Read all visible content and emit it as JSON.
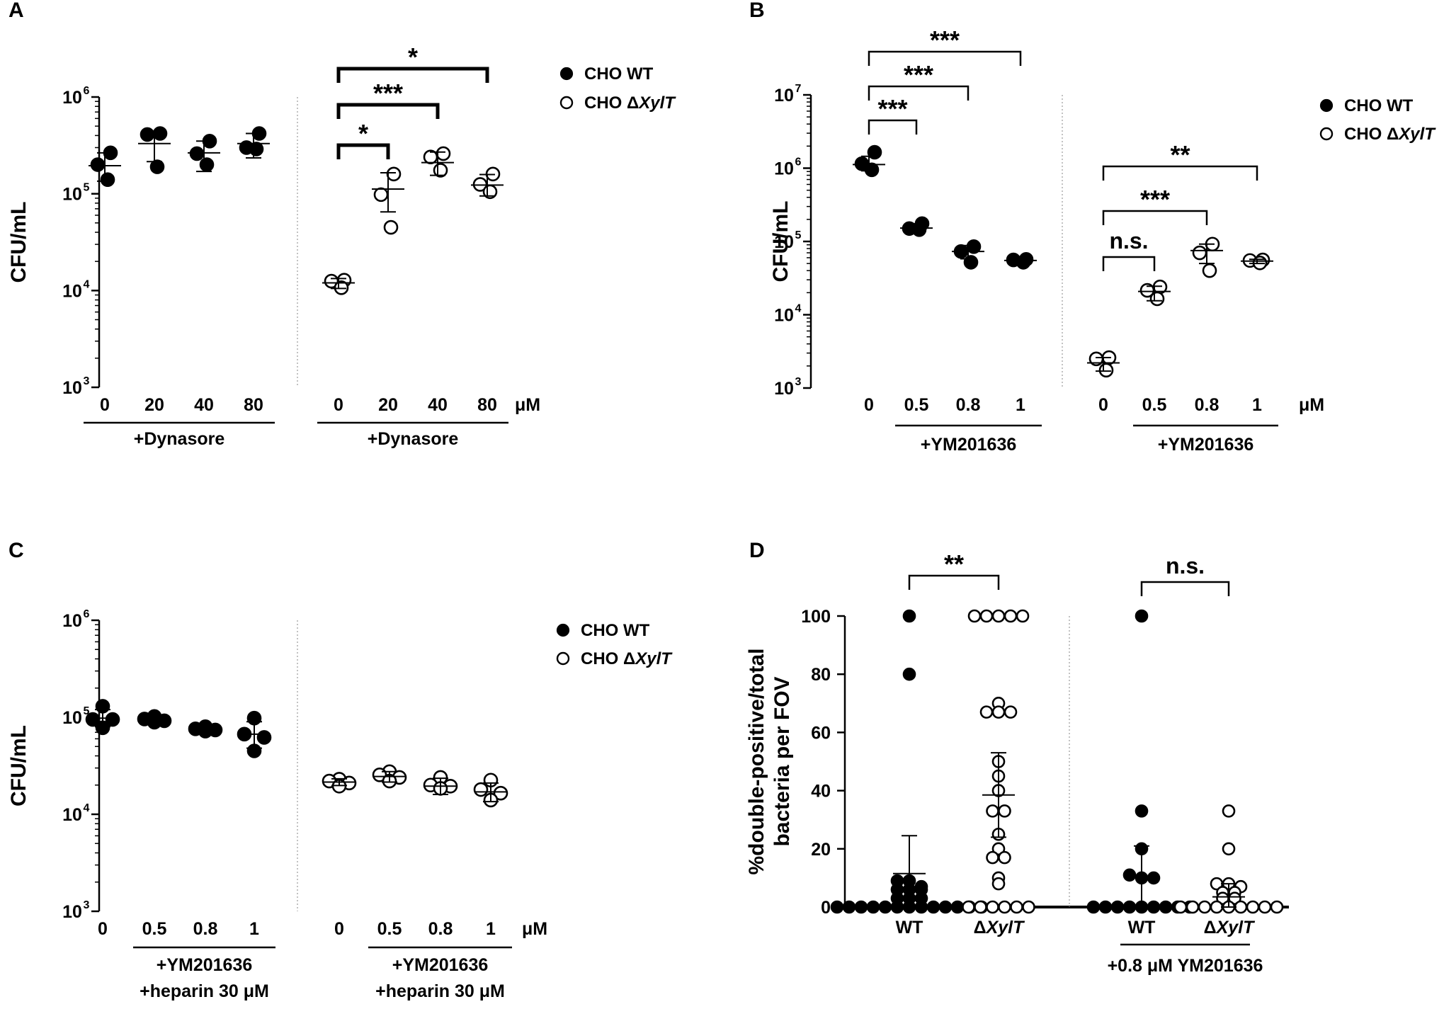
{
  "legend": {
    "wt": "CHO WT",
    "ko_prefix": "CHO Δ",
    "ko_italic": "XylT"
  },
  "unit": "μM",
  "chart_data": [
    {
      "panel": "A",
      "type": "scatter",
      "yscale": "log",
      "ylabel": "CFU/mL",
      "ylim": [
        1000,
        1000000
      ],
      "y_ticks": [
        {
          "base": "10",
          "exp": "3",
          "value": 1000
        },
        {
          "base": "10",
          "exp": "4",
          "value": 10000
        },
        {
          "base": "10",
          "exp": "5",
          "value": 100000
        },
        {
          "base": "10",
          "exp": "6",
          "value": 1000000
        }
      ],
      "legend_entries": [
        "CHO WT",
        "CHO ΔXylT"
      ],
      "treatment_label": "+Dynasore",
      "groups": [
        {
          "series": "CHO WT",
          "label": "0",
          "mean": 195000,
          "sd_low": 135000,
          "sd_high": 265000,
          "points": [
            265000,
            200000,
            140000
          ]
        },
        {
          "series": "CHO WT",
          "label": "20",
          "mean": 330000,
          "sd_low": 215000,
          "sd_high": 430000,
          "points": [
            420000,
            410000,
            190000
          ]
        },
        {
          "series": "CHO WT",
          "label": "40",
          "mean": 265000,
          "sd_low": 170000,
          "sd_high": 350000,
          "points": [
            350000,
            260000,
            200000
          ]
        },
        {
          "series": "CHO WT",
          "label": "80",
          "mean": 330000,
          "sd_low": 235000,
          "sd_high": 420000,
          "points": [
            420000,
            300000,
            290000
          ]
        },
        {
          "series": "CHO ΔXylT",
          "label": "0",
          "mean": 12000,
          "sd_low": 10500,
          "sd_high": 13300,
          "points": [
            12800,
            12500,
            10700
          ]
        },
        {
          "series": "CHO ΔXylT",
          "label": "20",
          "mean": 112000,
          "sd_low": 65000,
          "sd_high": 165000,
          "points": [
            160000,
            98000,
            45000
          ]
        },
        {
          "series": "CHO ΔXylT",
          "label": "40",
          "mean": 210000,
          "sd_low": 155000,
          "sd_high": 270000,
          "points": [
            260000,
            240000,
            175000
          ]
        },
        {
          "series": "CHO ΔXylT",
          "label": "80",
          "mean": 123000,
          "sd_low": 95000,
          "sd_high": 158000,
          "points": [
            160000,
            125000,
            105000
          ]
        }
      ],
      "comparisons": [
        {
          "from_group": 4,
          "to_group": 5,
          "label": "*"
        },
        {
          "from_group": 4,
          "to_group": 6,
          "label": "***"
        },
        {
          "from_group": 4,
          "to_group": 7,
          "label": "*"
        }
      ]
    },
    {
      "panel": "B",
      "type": "scatter",
      "yscale": "log",
      "ylabel": "CFU/mL",
      "ylim": [
        1000,
        10000000
      ],
      "y_ticks": [
        {
          "base": "10",
          "exp": "3",
          "value": 1000
        },
        {
          "base": "10",
          "exp": "4",
          "value": 10000
        },
        {
          "base": "10",
          "exp": "5",
          "value": 100000
        },
        {
          "base": "10",
          "exp": "6",
          "value": 1000000
        },
        {
          "base": "10",
          "exp": "7",
          "value": 10000000
        }
      ],
      "legend_entries": [
        "CHO WT",
        "CHO ΔXylT"
      ],
      "treatment_label": "+YM201636",
      "groups": [
        {
          "series": "CHO WT",
          "label": "0",
          "mean": 1120000,
          "sd_low": 920000,
          "sd_high": 1450000,
          "points": [
            1650000,
            1150000,
            950000
          ]
        },
        {
          "series": "CHO WT",
          "label": "0.5",
          "mean": 152000,
          "sd_low": 135000,
          "sd_high": 175000,
          "points": [
            175000,
            150000,
            145000
          ]
        },
        {
          "series": "CHO WT",
          "label": "0.8",
          "mean": 73000,
          "sd_low": 58000,
          "sd_high": 88000,
          "points": [
            85000,
            73000,
            52000
          ]
        },
        {
          "series": "CHO WT",
          "label": "1",
          "mean": 55000,
          "sd_low": 51000,
          "sd_high": 58000,
          "points": [
            57000,
            56000,
            52000
          ]
        },
        {
          "series": "CHO ΔXylT",
          "label": "0",
          "mean": 2200,
          "sd_low": 1700,
          "sd_high": 2600,
          "points": [
            2600,
            2500,
            1750
          ]
        },
        {
          "series": "CHO ΔXylT",
          "label": "0.5",
          "mean": 20800,
          "sd_low": 15500,
          "sd_high": 24500,
          "points": [
            24000,
            21500,
            16500
          ]
        },
        {
          "series": "CHO ΔXylT",
          "label": "0.8",
          "mean": 75000,
          "sd_low": 50000,
          "sd_high": 92000,
          "points": [
            92000,
            70000,
            40000
          ]
        },
        {
          "series": "CHO ΔXylT",
          "label": "1",
          "mean": 54000,
          "sd_low": 50000,
          "sd_high": 57000,
          "points": [
            56000,
            55000,
            51000
          ]
        }
      ],
      "comparisons": [
        {
          "from_group": 0,
          "to_group": 1,
          "label": "***"
        },
        {
          "from_group": 0,
          "to_group": 2,
          "label": "***"
        },
        {
          "from_group": 0,
          "to_group": 3,
          "label": "***"
        },
        {
          "from_group": 4,
          "to_group": 5,
          "label": "n.s."
        },
        {
          "from_group": 4,
          "to_group": 6,
          "label": "***"
        },
        {
          "from_group": 4,
          "to_group": 7,
          "label": "**"
        }
      ]
    },
    {
      "panel": "C",
      "type": "scatter",
      "yscale": "log",
      "ylabel": "CFU/mL",
      "ylim": [
        1000,
        1000000
      ],
      "y_ticks": [
        {
          "base": "10",
          "exp": "3",
          "value": 1000
        },
        {
          "base": "10",
          "exp": "4",
          "value": 10000
        },
        {
          "base": "10",
          "exp": "5",
          "value": 100000
        },
        {
          "base": "10",
          "exp": "6",
          "value": 1000000
        }
      ],
      "legend_entries": [
        "CHO WT",
        "CHO ΔXylT"
      ],
      "treatment_label_line1": "+YM201636",
      "treatment_label_line2": "+heparin 30 μM",
      "groups": [
        {
          "series": "CHO WT",
          "label": "0",
          "mean": 98000,
          "sd_low": 80000,
          "sd_high": 120000,
          "points": [
            130000,
            95000,
            95000,
            78000
          ]
        },
        {
          "series": "CHO WT",
          "label": "0.5",
          "mean": 94000,
          "sd_low": 88000,
          "sd_high": 100000,
          "points": [
            102000,
            96000,
            92000,
            89000
          ]
        },
        {
          "series": "CHO WT",
          "label": "0.8",
          "mean": 76000,
          "sd_low": 71000,
          "sd_high": 80000,
          "points": [
            80000,
            76000,
            74000,
            72000
          ]
        },
        {
          "series": "CHO WT",
          "label": "1",
          "mean": 67000,
          "sd_low": 48000,
          "sd_high": 90000,
          "points": [
            98000,
            67000,
            62000,
            45000
          ]
        },
        {
          "series": "CHO ΔXylT",
          "label": "0",
          "mean": 21500,
          "sd_low": 19800,
          "sd_high": 23200,
          "points": [
            23000,
            22000,
            21000,
            19500
          ]
        },
        {
          "series": "CHO ΔXylT",
          "label": "0.5",
          "mean": 24500,
          "sd_low": 21500,
          "sd_high": 27500,
          "points": [
            27500,
            25500,
            24000,
            22000
          ]
        },
        {
          "series": "CHO ΔXylT",
          "label": "0.8",
          "mean": 19500,
          "sd_low": 16000,
          "sd_high": 23500,
          "points": [
            24000,
            20000,
            19500,
            18500
          ]
        },
        {
          "series": "CHO ΔXylT",
          "label": "1",
          "mean": 17000,
          "sd_low": 13500,
          "sd_high": 21000,
          "points": [
            22500,
            18000,
            16500,
            14000
          ]
        }
      ],
      "comparisons": []
    },
    {
      "panel": "D",
      "type": "scatter",
      "yscale": "linear",
      "ylabel_line1": "%double-positive/total",
      "ylabel_line2": "bacteria per FOV",
      "ylim": [
        0,
        100
      ],
      "y_ticks": [
        {
          "label": "0",
          "value": 0
        },
        {
          "label": "20",
          "value": 20
        },
        {
          "label": "40",
          "value": 40
        },
        {
          "label": "60",
          "value": 60
        },
        {
          "label": "80",
          "value": 80
        },
        {
          "label": "100",
          "value": 100
        }
      ],
      "treatment_label": "+0.8 μM YM201636",
      "groups": [
        {
          "series": "CHO WT",
          "label": "WT",
          "label_italic": "",
          "mean": 11.5,
          "sd_low": 0,
          "sd_high": 24.5,
          "points": [
            100,
            80,
            9,
            9,
            6,
            6,
            6,
            7,
            3,
            3,
            3,
            0,
            0,
            0,
            0,
            0,
            0,
            0,
            0,
            0,
            0,
            0,
            0,
            0
          ]
        },
        {
          "series": "CHO ΔXylT",
          "label": "Δ",
          "label_italic": "XylT",
          "mean": 38.5,
          "sd_low": 24,
          "sd_high": 53,
          "points": [
            100,
            100,
            100,
            100,
            100,
            70,
            67,
            67,
            67,
            50,
            45,
            40,
            33,
            33,
            25,
            20,
            17,
            17,
            10,
            8,
            0,
            0,
            0,
            0,
            0,
            0
          ]
        },
        {
          "series": "CHO WT",
          "label": "WT",
          "label_italic": "",
          "mean": 10,
          "sd_low": 0,
          "sd_high": 21,
          "points": [
            100,
            33,
            20,
            11,
            10,
            10,
            0,
            0,
            0,
            0,
            0,
            0,
            0,
            0,
            0
          ]
        },
        {
          "series": "CHO ΔXylT",
          "label": "Δ",
          "label_italic": "XylT",
          "mean": 3.5,
          "sd_low": 0,
          "sd_high": 8,
          "points": [
            33,
            20,
            8,
            8,
            7,
            5,
            5,
            3,
            3,
            0,
            0,
            0,
            0,
            0,
            0,
            0,
            0,
            0
          ]
        }
      ],
      "comparisons": [
        {
          "from_group": 0,
          "to_group": 1,
          "label": "**"
        },
        {
          "from_group": 2,
          "to_group": 3,
          "label": "n.s."
        }
      ]
    }
  ]
}
